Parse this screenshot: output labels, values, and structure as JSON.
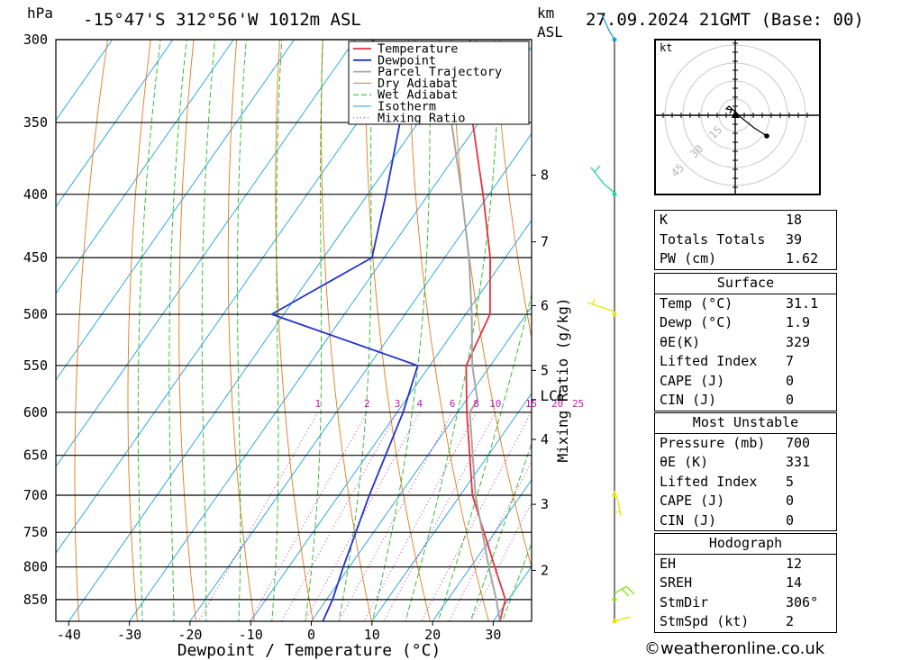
{
  "header": {
    "location": "-15°47'S 312°56'W 1012m ASL",
    "datetime": "27.09.2024 21GMT (Base: 00)",
    "hpa_label": "hPa",
    "km_label": "km",
    "asl_label": "ASL"
  },
  "chart_data": {
    "type": "line",
    "xlabel": "Dewpoint / Temperature (°C)",
    "ylabel": "hPa",
    "secondary_ylabel": "Mixing Ratio (g/kg)",
    "xlim": [
      -45,
      37
    ],
    "ylim": [
      885,
      300
    ],
    "x_ticks": [
      -40,
      -30,
      -20,
      -10,
      0,
      10,
      20,
      30
    ],
    "p_ticks": [
      300,
      350,
      400,
      450,
      500,
      550,
      600,
      650,
      700,
      750,
      800,
      850
    ],
    "height_ticks": [
      {
        "km": "2",
        "p": 805
      },
      {
        "km": "3",
        "p": 712
      },
      {
        "km": "4",
        "p": 631
      },
      {
        "km": "5",
        "p": 555
      },
      {
        "km": "6",
        "p": 492
      },
      {
        "km": "7",
        "p": 437
      },
      {
        "km": "8",
        "p": 386
      }
    ],
    "lcl_label": "LCL",
    "lcl_p": 586,
    "mixing_ratio_labels": [
      "1",
      "2",
      "3",
      "4",
      "6",
      "8",
      "10",
      "15",
      "20",
      "25"
    ],
    "legend": [
      "Temperature",
      "Dewpoint",
      "Parcel Trajectory",
      "Dry Adiabat",
      "Wet Adiabat",
      "Isotherm",
      "Mixing Ratio"
    ],
    "legend_position": "top-right",
    "series": [
      {
        "name": "Temperature",
        "color": "#e8323c",
        "points": [
          [
            885,
            31.1
          ],
          [
            850,
            29.5
          ],
          [
            800,
            24
          ],
          [
            700,
            12
          ],
          [
            600,
            1.5
          ],
          [
            550,
            -4
          ],
          [
            500,
            -6
          ],
          [
            450,
            -12.5
          ],
          [
            400,
            -21
          ],
          [
            350,
            -31
          ],
          [
            300,
            -41
          ]
        ]
      },
      {
        "name": "Dewpoint",
        "color": "#2233cc",
        "points": [
          [
            885,
            1.9
          ],
          [
            850,
            1
          ],
          [
            800,
            -1
          ],
          [
            700,
            -5
          ],
          [
            600,
            -9
          ],
          [
            550,
            -12
          ],
          [
            500,
            -42
          ],
          [
            450,
            -32
          ],
          [
            400,
            -37
          ],
          [
            350,
            -43
          ],
          [
            300,
            -57
          ]
        ]
      },
      {
        "name": "Parcel Trajectory",
        "color": "#a6a6a6",
        "points": [
          [
            885,
            31.1
          ],
          [
            850,
            28
          ],
          [
            800,
            23
          ],
          [
            700,
            12.5
          ],
          [
            600,
            2
          ],
          [
            586,
            1.8
          ],
          [
            550,
            -3
          ],
          [
            500,
            -9
          ],
          [
            450,
            -16
          ],
          [
            400,
            -24.5
          ],
          [
            350,
            -34.5
          ],
          [
            300,
            -46
          ]
        ]
      }
    ],
    "grid": true,
    "colors": {
      "dry_adiabat": "#e07a1f",
      "wet_adiabat": "#1fba1f",
      "isotherm": "#1e9ee0",
      "mixing_ratio": "#c21bb0"
    },
    "wind_profile": [
      {
        "p": 885,
        "color": "#e8e800"
      },
      {
        "p": 850,
        "color": "#8adf1f"
      },
      {
        "p": 700,
        "color": "#e8e800"
      },
      {
        "p": 500,
        "color": "#e8e800"
      },
      {
        "p": 400,
        "color": "#1fd6a0"
      },
      {
        "p": 300,
        "color": "#1e9ee0"
      }
    ]
  },
  "hodograph": {
    "unit_label": "kt",
    "ring_labels": [
      "15",
      "30",
      "45"
    ]
  },
  "indices": {
    "top": [
      {
        "label": "K",
        "value": "18"
      },
      {
        "label": "Totals Totals",
        "value": "39"
      },
      {
        "label": "PW (cm)",
        "value": "1.62"
      }
    ],
    "surface": {
      "title": "Surface",
      "rows": [
        {
          "label": "Temp (°C)",
          "value": "31.1"
        },
        {
          "label": "Dewp (°C)",
          "value": "1.9"
        },
        {
          "label": "θE(K)",
          "value": "329"
        },
        {
          "label": "Lifted Index",
          "value": "7"
        },
        {
          "label": "CAPE (J)",
          "value": "0"
        },
        {
          "label": "CIN (J)",
          "value": "0"
        }
      ]
    },
    "most_unstable": {
      "title": "Most Unstable",
      "rows": [
        {
          "label": "Pressure (mb)",
          "value": "700"
        },
        {
          "label": "θE (K)",
          "value": "331"
        },
        {
          "label": "Lifted Index",
          "value": "5"
        },
        {
          "label": "CAPE (J)",
          "value": "0"
        },
        {
          "label": "CIN (J)",
          "value": "0"
        }
      ]
    },
    "hodograph": {
      "title": "Hodograph",
      "rows": [
        {
          "label": "EH",
          "value": "12"
        },
        {
          "label": "SREH",
          "value": "14"
        },
        {
          "label": "StmDir",
          "value": "306°"
        },
        {
          "label": "StmSpd (kt)",
          "value": "2"
        }
      ]
    }
  },
  "footer": {
    "copyright": "©weatheronline.co.uk"
  }
}
